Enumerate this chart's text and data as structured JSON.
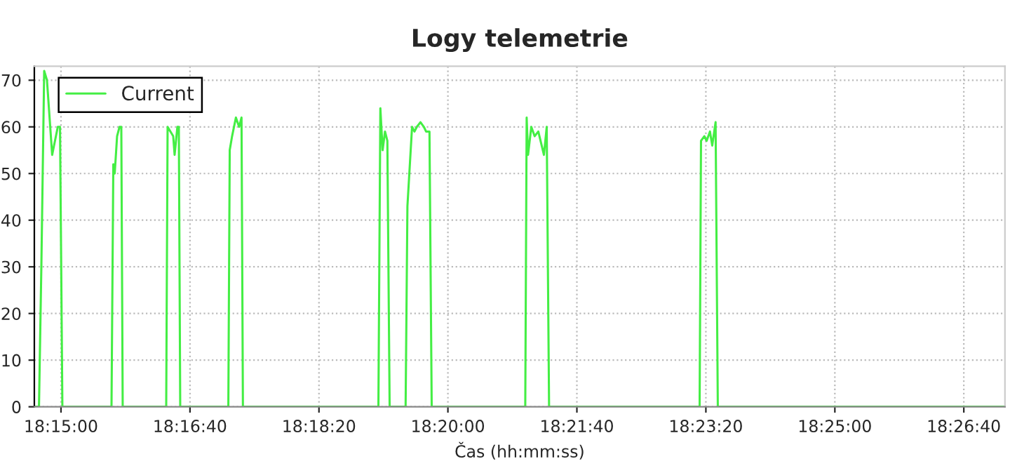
{
  "chart_data": {
    "type": "line",
    "title": "Logy telemetrie",
    "xlabel": "Čas (hh:mm:ss)",
    "series": [
      {
        "name": "Current",
        "color": "#44ee44",
        "x": [
          18.24426,
          18.24526,
          18.24577,
          18.24638,
          18.24698,
          18.2481,
          18.24931,
          18.24979,
          18.2503,
          18.26088,
          18.26127,
          18.26157,
          18.26208,
          18.2626,
          18.26299,
          18.26329,
          18.27266,
          18.27296,
          18.27417,
          18.27447,
          18.27507,
          18.27538,
          18.27568,
          18.28604,
          18.28634,
          18.28685,
          18.28767,
          18.28836,
          18.28888,
          18.28918,
          18.31836,
          18.31878,
          18.31927,
          18.31978,
          18.32029,
          18.32078,
          18.32422,
          18.32461,
          18.32561,
          18.32612,
          18.32664,
          18.32742,
          18.32815,
          18.32863,
          18.32936,
          18.32984,
          18.34999,
          18.35029,
          18.35059,
          18.35129,
          18.35201,
          18.3528,
          18.35401,
          18.35461,
          18.35512,
          18.38754,
          18.38784,
          18.38856,
          18.38905,
          18.38977,
          18.39026,
          18.39098,
          18.39146,
          18.4533
        ],
        "values": [
          0,
          0,
          30,
          72,
          70,
          54,
          60,
          60,
          0,
          0,
          52,
          50,
          58,
          60,
          60,
          0,
          0,
          60,
          58,
          54,
          60,
          60,
          0,
          0,
          55,
          58,
          62,
          60,
          62,
          0,
          0,
          64,
          55,
          59,
          57,
          0,
          0,
          43,
          60,
          59,
          60,
          61,
          60,
          59,
          59,
          0,
          0,
          62,
          54,
          60,
          58,
          59,
          54,
          60,
          0,
          0,
          57,
          58,
          57,
          59,
          56,
          61,
          0,
          0
        ]
      }
    ],
    "xlim": [
      18.24426,
      18.4533
    ],
    "xticks": [
      {
        "value": 18.25,
        "label": "18:15:00"
      },
      {
        "value": 18.27778,
        "label": "18:16:40"
      },
      {
        "value": 18.30556,
        "label": "18:18:20"
      },
      {
        "value": 18.33333,
        "label": "18:20:00"
      },
      {
        "value": 18.36111,
        "label": "18:21:40"
      },
      {
        "value": 18.38889,
        "label": "18:23:20"
      },
      {
        "value": 18.41667,
        "label": "18:25:00"
      },
      {
        "value": 18.44444,
        "label": "18:26:40"
      }
    ],
    "ylim": [
      0,
      73
    ],
    "yticks": [
      0,
      10,
      20,
      30,
      40,
      50,
      60,
      70
    ],
    "grid": true,
    "legend": "top left",
    "marker": "none",
    "line_style": "solid"
  }
}
